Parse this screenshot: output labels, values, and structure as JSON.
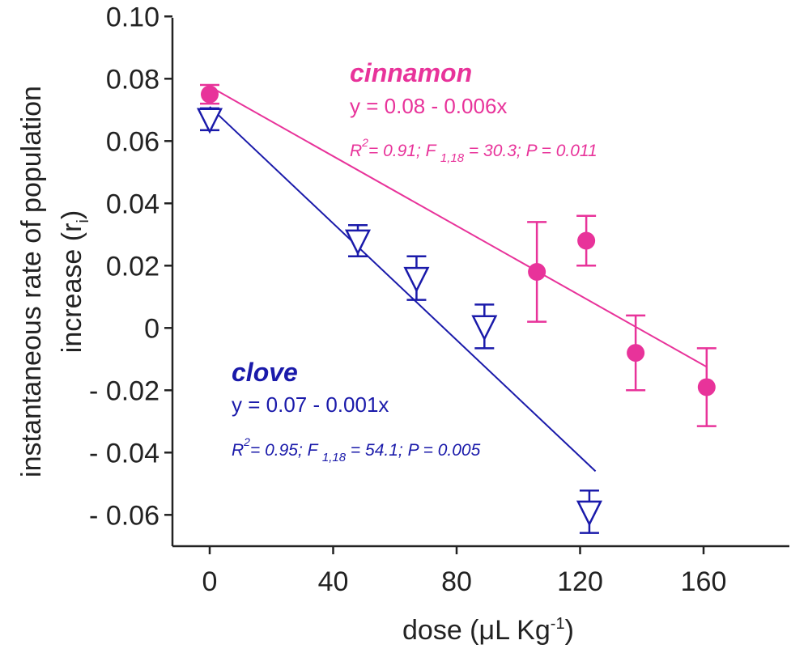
{
  "chart_data": {
    "type": "scatter",
    "xlabel": "dose  (μL Kg",
    "xlabel_sup": "-1",
    "xlabel_end": ")",
    "ylabel_line1": "instantaneous rate of population",
    "ylabel_line2": "increase  (r",
    "ylabel_sub": "i",
    "ylabel_end": ")",
    "xlim": [
      -10,
      178
    ],
    "ylim": [
      -0.07,
      0.1
    ],
    "x_ticks": [
      0,
      40,
      80,
      120,
      160
    ],
    "x_tick_labels": [
      "0",
      "40",
      "80",
      "120",
      "160"
    ],
    "y_ticks": [
      0.1,
      0.08,
      0.06,
      0.04,
      0.02,
      0,
      -0.02,
      -0.04,
      -0.06
    ],
    "y_tick_labels": [
      "0.10",
      "0.08",
      "0.06",
      "0.04",
      "0.02",
      "0",
      "- 0.02",
      "- 0.04",
      "- 0.06"
    ],
    "series": [
      {
        "name": "cinnamon",
        "marker": "filled-circle",
        "color": "#e8339a",
        "points": [
          {
            "x": 0,
            "y": 0.075,
            "err": 0.003
          },
          {
            "x": 106,
            "y": 0.018,
            "err": 0.016
          },
          {
            "x": 122,
            "y": 0.028,
            "err": 0.008
          },
          {
            "x": 138,
            "y": -0.008,
            "err": 0.012
          },
          {
            "x": 161,
            "y": -0.019,
            "err": 0.0125
          }
        ],
        "fit": {
          "x": [
            0,
            161
          ],
          "y": [
            0.0775,
            -0.0125
          ]
        },
        "equation": "y = 0.08 - 0.006x",
        "stats_r": "R",
        "stats_r_sup": "2",
        "stats_mid": "= 0.91; F ",
        "stats_sub": "1,18",
        "stats_end": " = 30.3; P = 0.011"
      },
      {
        "name": "clove",
        "marker": "open-triangle-down",
        "color": "#1a1aaa",
        "points": [
          {
            "x": 0,
            "y": 0.067,
            "err": 0.0035
          },
          {
            "x": 48,
            "y": 0.028,
            "err": 0.005
          },
          {
            "x": 67,
            "y": 0.016,
            "err": 0.007
          },
          {
            "x": 89,
            "y": 0.0005,
            "err": 0.007
          },
          {
            "x": 123,
            "y": -0.059,
            "err": 0.0068
          }
        ],
        "fit": {
          "x": [
            0,
            125
          ],
          "y": [
            0.071,
            -0.046
          ]
        },
        "equation": "y = 0.07 - 0.001x",
        "stats_r": "R",
        "stats_r_sup": "2",
        "stats_mid": "= 0.95; F ",
        "stats_sub": "1,18",
        "stats_end": " = 54.1; P = 0.005"
      }
    ],
    "legend": "none",
    "grid": false
  }
}
